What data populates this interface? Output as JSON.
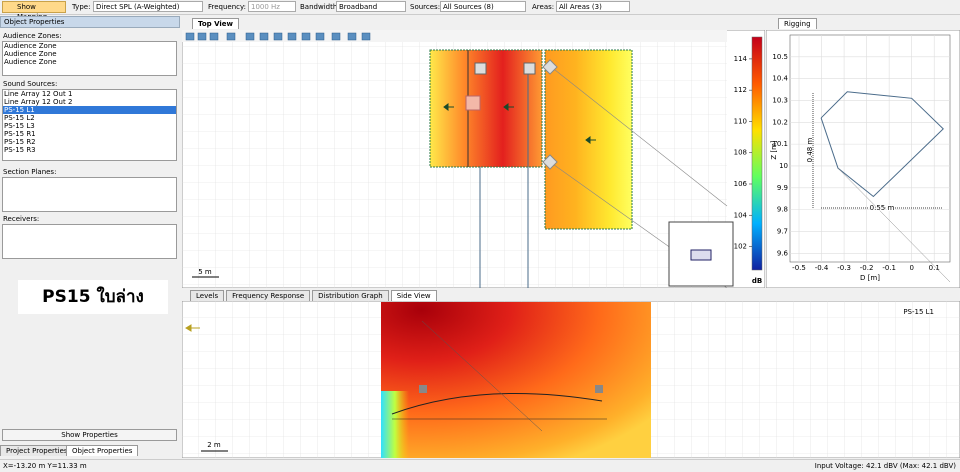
{
  "toolbar": {
    "show_mapping": "Show Mapping",
    "type_label": "Type:",
    "type_value": "Direct SPL (A-Weighted)",
    "frequency_label": "Frequency:",
    "frequency_value": "1000 Hz",
    "bandwidth_label": "Bandwidth:",
    "bandwidth_value": "Broadband",
    "sources_label": "Sources:",
    "sources_value": "All Sources (8)",
    "areas_label": "Areas:",
    "areas_value": "All Areas (3)"
  },
  "left_panel": {
    "title": "Object Properties",
    "audience_zones_label": "Audience Zones:",
    "audience_zones": [
      "Audience Zone",
      "Audience Zone",
      "Audience Zone"
    ],
    "sound_sources_label": "Sound Sources:",
    "sound_sources": [
      "Line Array 12 Out 1",
      "Line Array 12 Out 2",
      "PS-15 L1",
      "PS-15 L2",
      "PS-15 L3",
      "PS-15 R1",
      "PS-15 R2",
      "PS-15 R3"
    ],
    "selected_source": 2,
    "section_planes_label": "Section Planes:",
    "receivers_label": "Receivers:",
    "overlay_text": "PS15 ใบล่าง",
    "show_properties": "Show Properties",
    "tabs": [
      "Project Properties",
      "Object Properties"
    ]
  },
  "top_view": {
    "tab": "Top View",
    "scale_label": "5 m",
    "colorbar": {
      "ylim": [
        100.5,
        115.4
      ],
      "yticks": [
        102,
        104,
        106,
        108,
        110,
        112,
        114
      ],
      "unit": "dB"
    }
  },
  "rigging": {
    "tab": "Rigging",
    "xlim": [
      -0.54,
      0.17
    ],
    "xticks": [
      -0.5,
      -0.4,
      -0.3,
      -0.2,
      -0.1,
      0.0,
      0.1
    ],
    "ylim": [
      9.56,
      10.6
    ],
    "yticks": [
      9.6,
      9.7,
      9.8,
      9.9,
      10.0,
      10.1,
      10.2,
      10.3,
      10.4,
      10.5
    ],
    "x_label": "D [m]",
    "y_label": "Z [m]",
    "outline": {
      "x": [
        -0.402,
        -0.286,
        0.0,
        0.14,
        -0.17,
        -0.327,
        -0.402
      ],
      "y": [
        10.22,
        10.34,
        10.31,
        10.17,
        9.86,
        9.99,
        10.22
      ],
      "color": "#4a6b8a"
    },
    "height_label": "0.48 m",
    "width_label": "0.55 m"
  },
  "bottom": {
    "tabs": [
      "Levels",
      "Frequency Response",
      "Distribution Graph",
      "Side View"
    ],
    "active_tab": 3,
    "source_label": "PS-15 L1",
    "scale_label": "2 m"
  },
  "status": {
    "position": "X=-13.20 m Y=11.33 m",
    "voltage": "Input Voltage: 42.1 dBV (Max: 42.1 dBV)"
  }
}
